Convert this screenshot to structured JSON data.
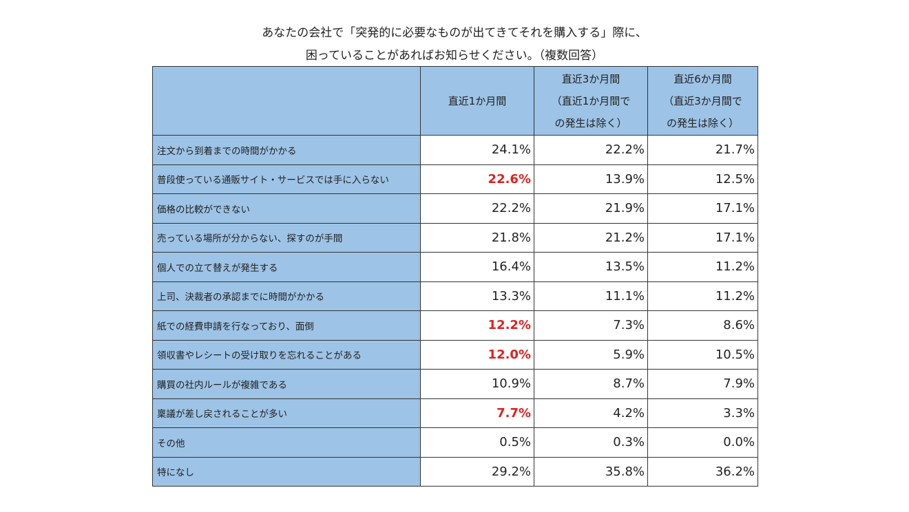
{
  "chart_data": {
    "type": "table",
    "title_lines": [
      "あなたの会社で「突発的に必要なものが出てきてそれを購入する」際に、",
      "困っていることがあればお知らせください。（複数回答）"
    ],
    "columns": [
      {
        "label": "直近1か月間"
      },
      {
        "label_lines": [
          "直近3か月間",
          "（直近1か月間で",
          "の発生は除く）"
        ]
      },
      {
        "label_lines": [
          "直近6か月間",
          "（直近3か月間で",
          "の発生は除く）"
        ]
      }
    ],
    "rows": [
      {
        "label": "注文から到着までの時間がかかる",
        "values": [
          "24.1%",
          "22.2%",
          "21.7%"
        ],
        "highlight": false
      },
      {
        "label": "普段使っている通販サイト・サービスでは手に入らない",
        "values": [
          "22.6%",
          "13.9%",
          "12.5%"
        ],
        "highlight": true
      },
      {
        "label": "価格の比較ができない",
        "values": [
          "22.2%",
          "21.9%",
          "17.1%"
        ],
        "highlight": false
      },
      {
        "label": "売っている場所が分からない、探すのが手間",
        "values": [
          "21.8%",
          "21.2%",
          "17.1%"
        ],
        "highlight": false
      },
      {
        "label": "個人での立て替えが発生する",
        "values": [
          "16.4%",
          "13.5%",
          "11.2%"
        ],
        "highlight": false
      },
      {
        "label": "上司、決裁者の承認までに時間がかかる",
        "values": [
          "13.3%",
          "11.1%",
          "11.2%"
        ],
        "highlight": false
      },
      {
        "label": "紙での経費申請を行なっており、面倒",
        "values": [
          "12.2%",
          "7.3%",
          "8.6%"
        ],
        "highlight": true
      },
      {
        "label": "領収書やレシートの受け取りを忘れることがある",
        "values": [
          "12.0%",
          "5.9%",
          "10.5%"
        ],
        "highlight": true
      },
      {
        "label": "購買の社内ルールが複雑である",
        "values": [
          "10.9%",
          "8.7%",
          "7.9%"
        ],
        "highlight": false
      },
      {
        "label": "稟議が差し戻されることが多い",
        "values": [
          "7.7%",
          "4.2%",
          "3.3%"
        ],
        "highlight": true
      },
      {
        "label": "その他",
        "values": [
          "0.5%",
          "0.3%",
          "0.0%"
        ],
        "highlight": false
      },
      {
        "label": "特になし",
        "values": [
          "29.2%",
          "35.8%",
          "36.2%"
        ],
        "highlight": false
      }
    ],
    "colors": {
      "header_bg": "#9dc3e6",
      "highlight_text": "#e0201f",
      "grid": "#333333"
    }
  }
}
